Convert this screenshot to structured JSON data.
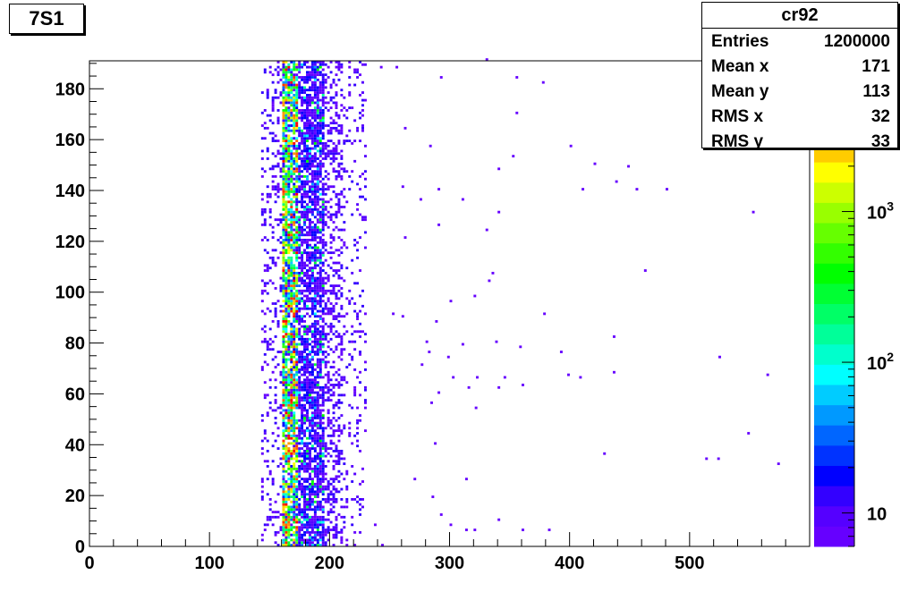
{
  "title_box": {
    "label": "7S1"
  },
  "stats": {
    "name": "cr92",
    "rows": [
      {
        "label": "Entries",
        "value": "1200000"
      },
      {
        "label": "Mean x",
        "value": "171"
      },
      {
        "label": "Mean y",
        "value": "113"
      },
      {
        "label": "RMS x",
        "value": "32"
      },
      {
        "label": "RMS y",
        "value": "33"
      }
    ]
  },
  "chart_data": {
    "type": "heatmap",
    "title": "",
    "xlabel": "",
    "ylabel": "",
    "xlim": [
      0,
      600
    ],
    "ylim": [
      0,
      191
    ],
    "x_ticks": [
      0,
      100,
      200,
      300,
      400,
      500
    ],
    "y_ticks": [
      0,
      20,
      40,
      60,
      80,
      100,
      120,
      140,
      160,
      180
    ],
    "z_scale": "log",
    "zlim": [
      6,
      10000
    ],
    "z_tick_labels": [
      {
        "value": 10,
        "label": "10"
      },
      {
        "value": 100,
        "label": "10",
        "exponent": "2"
      },
      {
        "value": 1000,
        "label": "10",
        "exponent": "3"
      }
    ],
    "palette": [
      "#6600ff",
      "#5500ff",
      "#3300ff",
      "#0000ff",
      "#0033ff",
      "#0066ff",
      "#0099ff",
      "#00ccff",
      "#00ffff",
      "#00ffcc",
      "#00ff99",
      "#00ff66",
      "#00ff33",
      "#00ff00",
      "#33ff00",
      "#66ff00",
      "#99ff00",
      "#ccff00",
      "#ffff00",
      "#ffcc00",
      "#ff9900",
      "#ff6600",
      "#ff3300",
      "#ff0000"
    ],
    "grid": false,
    "dense_band_x": [
      155,
      230
    ],
    "sparse_points": [
      [
        242,
        188
      ],
      [
        255,
        188
      ],
      [
        292,
        184
      ],
      [
        330,
        191
      ],
      [
        355,
        184
      ],
      [
        377,
        182
      ],
      [
        355,
        170
      ],
      [
        262,
        164
      ],
      [
        283,
        157
      ],
      [
        400,
        157
      ],
      [
        420,
        150
      ],
      [
        448,
        149
      ],
      [
        352,
        153
      ],
      [
        340,
        148
      ],
      [
        438,
        143
      ],
      [
        455,
        140
      ],
      [
        480,
        140
      ],
      [
        410,
        140
      ],
      [
        290,
        140
      ],
      [
        260,
        141
      ],
      [
        275,
        136
      ],
      [
        310,
        136
      ],
      [
        340,
        131
      ],
      [
        552,
        131
      ],
      [
        290,
        126
      ],
      [
        330,
        124
      ],
      [
        262,
        121
      ],
      [
        462,
        108
      ],
      [
        335,
        107
      ],
      [
        332,
        104
      ],
      [
        320,
        98
      ],
      [
        300,
        96
      ],
      [
        378,
        91
      ],
      [
        260,
        90
      ],
      [
        252,
        91
      ],
      [
        288,
        88
      ],
      [
        436,
        82
      ],
      [
        280,
        80
      ],
      [
        310,
        79
      ],
      [
        338,
        80
      ],
      [
        358,
        78
      ],
      [
        282,
        76
      ],
      [
        298,
        74
      ],
      [
        392,
        76
      ],
      [
        524,
        74
      ],
      [
        276,
        71
      ],
      [
        436,
        68
      ],
      [
        564,
        67
      ],
      [
        322,
        66
      ],
      [
        345,
        66
      ],
      [
        398,
        67
      ],
      [
        408,
        66
      ],
      [
        302,
        66
      ],
      [
        315,
        62
      ],
      [
        360,
        63
      ],
      [
        340,
        62
      ],
      [
        284,
        56
      ],
      [
        321,
        54
      ],
      [
        290,
        60
      ],
      [
        548,
        44
      ],
      [
        287,
        40
      ],
      [
        428,
        36
      ],
      [
        513,
        34
      ],
      [
        523,
        34
      ],
      [
        573,
        32
      ],
      [
        313,
        26
      ],
      [
        270,
        26
      ],
      [
        285,
        19
      ],
      [
        292,
        12
      ],
      [
        313,
        6
      ],
      [
        320,
        6
      ],
      [
        360,
        6
      ],
      [
        382,
        6
      ],
      [
        300,
        8
      ],
      [
        340,
        10
      ],
      [
        237,
        8
      ],
      [
        243,
        0
      ]
    ]
  }
}
